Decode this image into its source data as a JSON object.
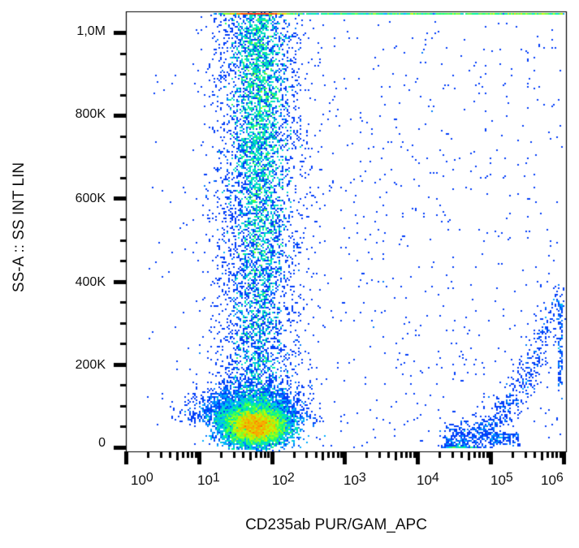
{
  "chart_data": {
    "type": "scatter",
    "subtype": "flow-cytometry density dot plot",
    "title": "",
    "xlabel": "CD235ab PUR/GAM_APC",
    "ylabel": "SS-A :: SS INT LIN",
    "x_scale": "log",
    "y_scale": "linear",
    "xlim": [
      1,
      1000000
    ],
    "ylim": [
      0,
      1050000
    ],
    "x_ticks": [
      {
        "value": 1,
        "base": "10",
        "exp": "0"
      },
      {
        "value": 10,
        "base": "10",
        "exp": "1"
      },
      {
        "value": 100,
        "base": "10",
        "exp": "2"
      },
      {
        "value": 1000,
        "base": "10",
        "exp": "3"
      },
      {
        "value": 10000,
        "base": "10",
        "exp": "4"
      },
      {
        "value": 100000,
        "base": "10",
        "exp": "5"
      },
      {
        "value": 1000000,
        "base": "10",
        "exp": "6"
      }
    ],
    "y_ticks": [
      {
        "value": 0,
        "label": "0"
      },
      {
        "value": 200000,
        "label": "200K"
      },
      {
        "value": 400000,
        "label": "400K"
      },
      {
        "value": 600000,
        "label": "600K"
      },
      {
        "value": 800000,
        "label": "800K"
      },
      {
        "value": 1000000,
        "label": "1,0M"
      }
    ],
    "grid": false,
    "legend": null,
    "colormap": [
      "#1010a0",
      "#0040ff",
      "#00c0ff",
      "#00ff80",
      "#c0ff00",
      "#ffa000",
      "#ff2000"
    ],
    "populations": [
      {
        "name": "CD235ab-negative dense cluster (low SS)",
        "x_center_log": 1.75,
        "x_spread_log": 0.28,
        "y_center": 50000,
        "y_spread": 30000,
        "relative_density": "very high",
        "peak_color": "red/orange"
      },
      {
        "name": "CD235ab-negative vertical band (high SS)",
        "x_center_log": 1.8,
        "x_spread_log": 0.22,
        "y_range": [
          100000,
          1050000
        ],
        "relative_density": "medium",
        "peak_color": "green",
        "peak_y": 850000
      },
      {
        "name": "CD235ab-positive arc (erythrocytes)",
        "x_range_log": [
          4.4,
          6.0
        ],
        "y_range": [
          0,
          400000
        ],
        "relative_density": "low",
        "peak_color": "cyan/blue"
      },
      {
        "name": "scattered background events",
        "x_range_log": [
          0,
          6
        ],
        "y_range": [
          0,
          1050000
        ],
        "relative_density": "sparse",
        "peak_color": "dark blue"
      },
      {
        "name": "saturated events at top edge",
        "x_range_log": [
          1.0,
          6.0
        ],
        "y_value": 1050000,
        "relative_density": "medium",
        "peak_color": "green/yellow at x~10^2"
      }
    ]
  },
  "axes": {
    "x_title": "CD235ab PUR/GAM_APC",
    "y_title": "SS-A :: SS INT LIN"
  }
}
